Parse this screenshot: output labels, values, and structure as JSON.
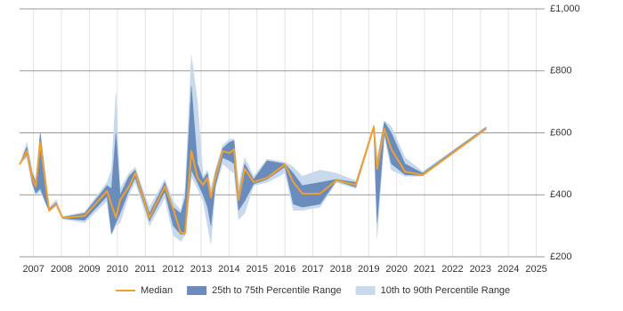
{
  "chart_data": {
    "type": "line",
    "x": [
      2006.5,
      2006.76,
      2006.95,
      2007.08,
      2007.24,
      2007.56,
      2007.81,
      2008.04,
      2008.83,
      2009.63,
      2009.79,
      2009.95,
      2010.1,
      2010.42,
      2010.64,
      2010.9,
      2011.15,
      2011.7,
      2012.0,
      2012.27,
      2012.43,
      2012.65,
      2012.87,
      2013.07,
      2013.23,
      2013.35,
      2013.51,
      2013.77,
      2014.02,
      2014.18,
      2014.34,
      2014.56,
      2014.88,
      2015.36,
      2016.0,
      2016.3,
      2016.62,
      2017.26,
      2017.84,
      2018.54,
      2019.18,
      2019.3,
      2019.56,
      2019.81,
      2020.3,
      2020.93,
      2023.2
    ],
    "series": [
      {
        "name": "Median",
        "color": "#f0a030",
        "values": [
          498,
          541,
          455,
          427,
          570,
          349,
          369,
          326,
          332,
          412,
          369,
          326,
          383,
          427,
          470,
          398,
          326,
          427,
          355,
          277,
          277,
          541,
          455,
          432,
          455,
          392,
          455,
          541,
          535,
          547,
          383,
          484,
          441,
          455,
          498,
          441,
          404,
          404,
          447,
          432,
          619,
          484,
          613,
          547,
          475,
          464,
          613
        ]
      }
    ],
    "bands": [
      {
        "name": "10th to 90th Percentile Range",
        "color": "#c8d9eb",
        "low": [
          498,
          520,
          430,
          400,
          410,
          345,
          365,
          322,
          310,
          380,
          270,
          300,
          310,
          400,
          440,
          370,
          300,
          390,
          270,
          250,
          270,
          460,
          420,
          380,
          300,
          240,
          420,
          500,
          480,
          470,
          320,
          340,
          430,
          440,
          470,
          350,
          350,
          360,
          440,
          420,
          610,
          260,
          590,
          480,
          460,
          460,
          610
        ],
        "high": [
          498,
          570,
          480,
          450,
          600,
          360,
          385,
          330,
          345,
          440,
          480,
          730,
          420,
          470,
          490,
          420,
          360,
          450,
          380,
          350,
          420,
          850,
          700,
          460,
          480,
          420,
          480,
          560,
          580,
          580,
          430,
          520,
          460,
          515,
          505,
          490,
          460,
          480,
          470,
          445,
          625,
          520,
          640,
          620,
          520,
          475,
          620
        ]
      },
      {
        "name": "25th to 75th Percentile Range",
        "color": "#6a8cbc",
        "low": [
          498,
          530,
          440,
          405,
          420,
          347,
          367,
          324,
          318,
          395,
          275,
          310,
          340,
          415,
          455,
          385,
          315,
          410,
          300,
          272,
          274,
          480,
          440,
          400,
          360,
          300,
          430,
          520,
          510,
          500,
          350,
          380,
          435,
          450,
          490,
          370,
          360,
          370,
          445,
          425,
          615,
          310,
          600,
          500,
          465,
          462,
          612
        ],
        "high": [
          498,
          555,
          470,
          440,
          600,
          355,
          375,
          328,
          340,
          430,
          420,
          600,
          400,
          460,
          480,
          410,
          340,
          440,
          360,
          340,
          390,
          750,
          500,
          450,
          470,
          400,
          470,
          550,
          570,
          575,
          400,
          500,
          450,
          510,
          500,
          470,
          430,
          440,
          450,
          440,
          625,
          500,
          635,
          600,
          500,
          470,
          618
        ]
      }
    ],
    "xlim": [
      2006.5,
      2025.3
    ],
    "xticks": [
      2007,
      2008,
      2009,
      2010,
      2011,
      2012,
      2013,
      2014,
      2015,
      2016,
      2017,
      2018,
      2019,
      2020,
      2021,
      2022,
      2023,
      2024,
      2025
    ],
    "ylim": [
      200,
      1000
    ],
    "yticks": [
      {
        "value": 200,
        "label": "£200"
      },
      {
        "value": 400,
        "label": "£400"
      },
      {
        "value": 600,
        "label": "£600"
      },
      {
        "value": 800,
        "label": "£800"
      },
      {
        "value": 1000,
        "label": "£1,000"
      }
    ],
    "grid": true
  }
}
